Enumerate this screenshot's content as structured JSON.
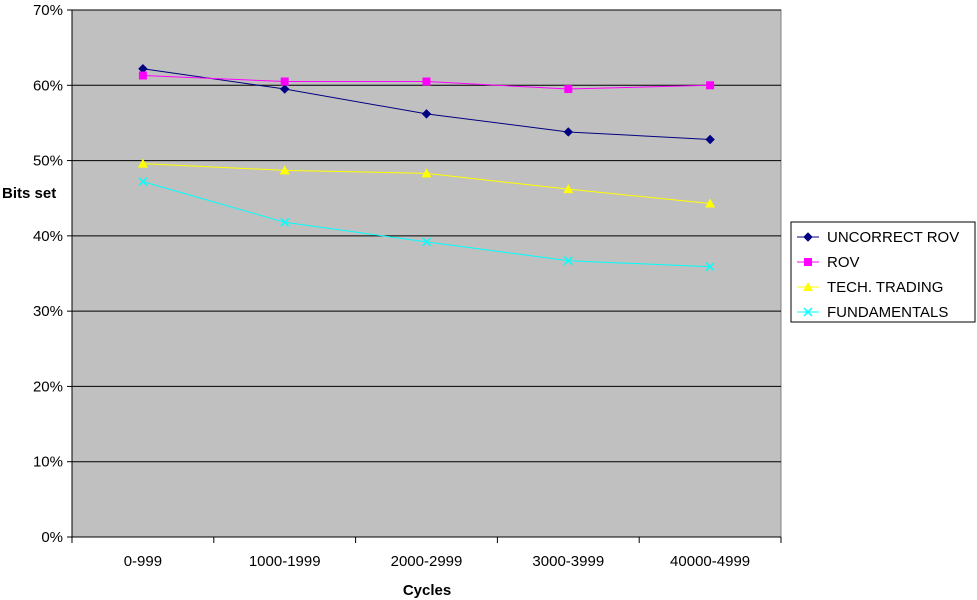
{
  "chart_data": {
    "type": "line",
    "title": "",
    "xlabel": "Cycles",
    "ylabel": "Bits set",
    "categories": [
      "0-999",
      "1000-1999",
      "2000-2999",
      "3000-3999",
      "40000-4999"
    ],
    "ylim": [
      0,
      70
    ],
    "yticks": [
      0,
      10,
      20,
      30,
      40,
      50,
      60,
      70
    ],
    "ytick_labels": [
      "0%",
      "10%",
      "20%",
      "30%",
      "40%",
      "50%",
      "60%",
      "70%"
    ],
    "grid": "horizontal major",
    "legend_position": "right",
    "plot_background": "#c0c0c0",
    "series": [
      {
        "name": "UNCORRECT ROV",
        "color": "#000080",
        "marker": "diamond",
        "values": [
          62.2,
          59.5,
          56.2,
          53.8,
          52.8
        ]
      },
      {
        "name": "ROV",
        "color": "#ff00ff",
        "marker": "square",
        "values": [
          61.3,
          60.5,
          60.5,
          59.5,
          60.0
        ]
      },
      {
        "name": "TECH. TRADING",
        "color": "#ffff00",
        "marker": "triangle",
        "values": [
          49.6,
          48.7,
          48.3,
          46.2,
          44.3
        ]
      },
      {
        "name": "FUNDAMENTALS",
        "color": "#00ffff",
        "marker": "x",
        "values": [
          47.2,
          41.8,
          39.2,
          36.7,
          35.9
        ]
      }
    ]
  }
}
